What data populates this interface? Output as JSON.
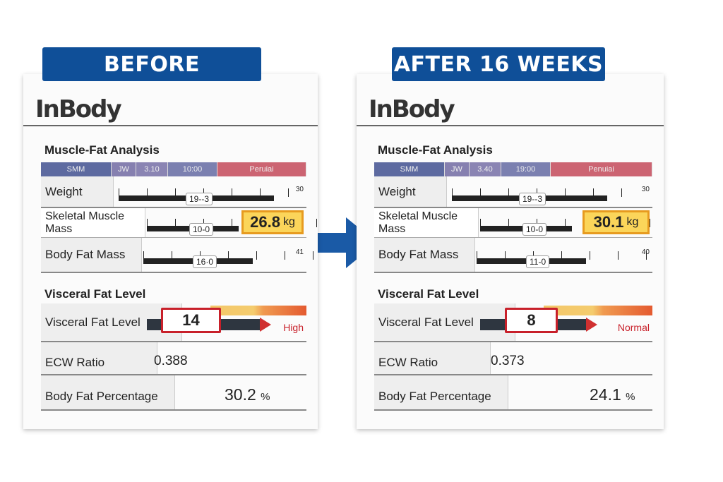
{
  "panels": [
    {
      "banner": "BEFORE",
      "logo": "InBody",
      "section1": "Muscle-Fat Analysis",
      "strip": [
        "SMM",
        "JW",
        "3.10",
        "10:00",
        "Peruiai"
      ],
      "weight": {
        "label": "Weight",
        "marker": "19--3",
        "end": "30"
      },
      "smm": {
        "label": "Skeletal Muscle Mass",
        "marker": "10-0",
        "value": "26.8",
        "unit": "kg"
      },
      "bfm": {
        "label": "Body Fat Mass",
        "marker": "16·0",
        "end": "41"
      },
      "section2": "Visceral Fat Level",
      "vfl": {
        "label": "Visceral Fat Level",
        "value": "14",
        "status": "High"
      },
      "ecw": {
        "label": "ECW Ratio",
        "value": "0.388"
      },
      "bfp": {
        "label": "Body Fat Percentage",
        "value": "30.2",
        "unit": "%"
      }
    },
    {
      "banner": "AFTER 16 WEEKS",
      "logo": "InBody",
      "section1": "Muscle-Fat Analysis",
      "strip": [
        "SMM",
        "JW",
        "3.40",
        "19:00",
        "Penuiai"
      ],
      "weight": {
        "label": "Weight",
        "marker": "19--3",
        "end": "30"
      },
      "smm": {
        "label": "Skeletal Muscle Mass",
        "marker": "10-0",
        "value": "30.1",
        "unit": "kg"
      },
      "bfm": {
        "label": "Body Fat Mass",
        "marker": "11-0",
        "end": "40"
      },
      "section2": "Visceral Fat Level",
      "vfl": {
        "label": "Visceral Fat Level",
        "value": "8",
        "status": "Normal"
      },
      "ecw": {
        "label": "ECW Ratio",
        "value": "0.373"
      },
      "bfp": {
        "label": "Body Fat Percentage",
        "value": "24.1",
        "unit": "%"
      }
    }
  ],
  "colors": {
    "banner": "#0f4f98",
    "highlight": "#fbd55a",
    "alert": "#c8202a"
  }
}
